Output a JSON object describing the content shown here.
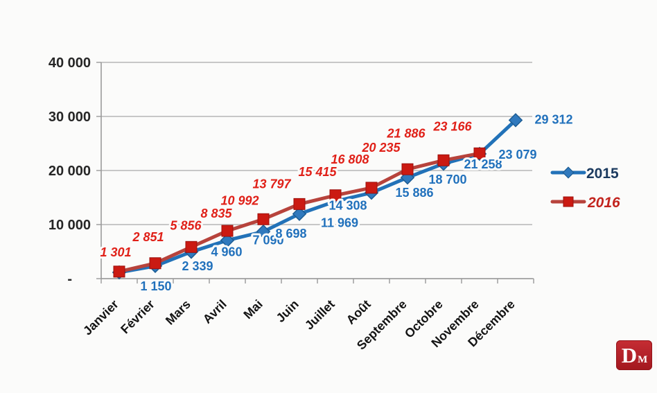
{
  "chart_data": {
    "type": "line",
    "title": "",
    "xlabel": "",
    "ylabel": "",
    "categories": [
      "Janvier",
      "Février",
      "Mars",
      "Avril",
      "Mai",
      "Juin",
      "Juillet",
      "Août",
      "Septembre",
      "Octobre",
      "Novembre",
      "Décembre"
    ],
    "series": [
      {
        "name": "2015",
        "marker": "diamond",
        "italic": false,
        "line_color": "#2272b8",
        "marker_color": "#3079bd",
        "marker_edge_color": "#1d5d94",
        "label_color": "#2171bc",
        "legend_text_color": "#1b3a5f",
        "values": [
          1150,
          2339,
          4960,
          7090,
          8698,
          11969,
          14308,
          15886,
          18700,
          21258,
          23079,
          29312
        ],
        "value_labels": [
          "1 150",
          "2 339",
          "4 960",
          "7 090",
          "8 698",
          "11 969",
          "14 308",
          "15 886",
          "18 700",
          "21 258",
          "23 079",
          "29 312"
        ]
      },
      {
        "name": "2016",
        "marker": "square",
        "italic": true,
        "line_color": "#b7433c",
        "marker_color": "#cb1a12",
        "marker_edge_color": "#9c100c",
        "label_color": "#e02018",
        "legend_text_color": "#c2241e",
        "values": [
          1301,
          2851,
          5856,
          8835,
          10992,
          13797,
          15415,
          16808,
          20235,
          21886,
          23166,
          null
        ],
        "value_labels": [
          "1 301",
          "2 851",
          "5 856",
          "8 835",
          "10 992",
          "13 797",
          "15 415",
          "16 808",
          "20 235",
          "21 886",
          "23 166",
          null
        ]
      }
    ],
    "y_axis": {
      "min": 0,
      "max": 40000,
      "ticks": [
        {
          "value": 0,
          "label": "-"
        },
        {
          "value": 10000,
          "label": "10 000"
        },
        {
          "value": 20000,
          "label": "20 000"
        },
        {
          "value": 30000,
          "label": "30 000"
        },
        {
          "value": 40000,
          "label": "40 000"
        }
      ]
    },
    "grid": true,
    "legend_position": "right",
    "grid_color": "#b6b6b6",
    "axis_color": "#9a9a9a",
    "tick_label_color": "#262626",
    "month_label_color": "#141414"
  },
  "logo": {
    "letter_large": "D",
    "letter_small": "M",
    "bg_color": "#b5232b",
    "text_color": "#ffffff"
  }
}
